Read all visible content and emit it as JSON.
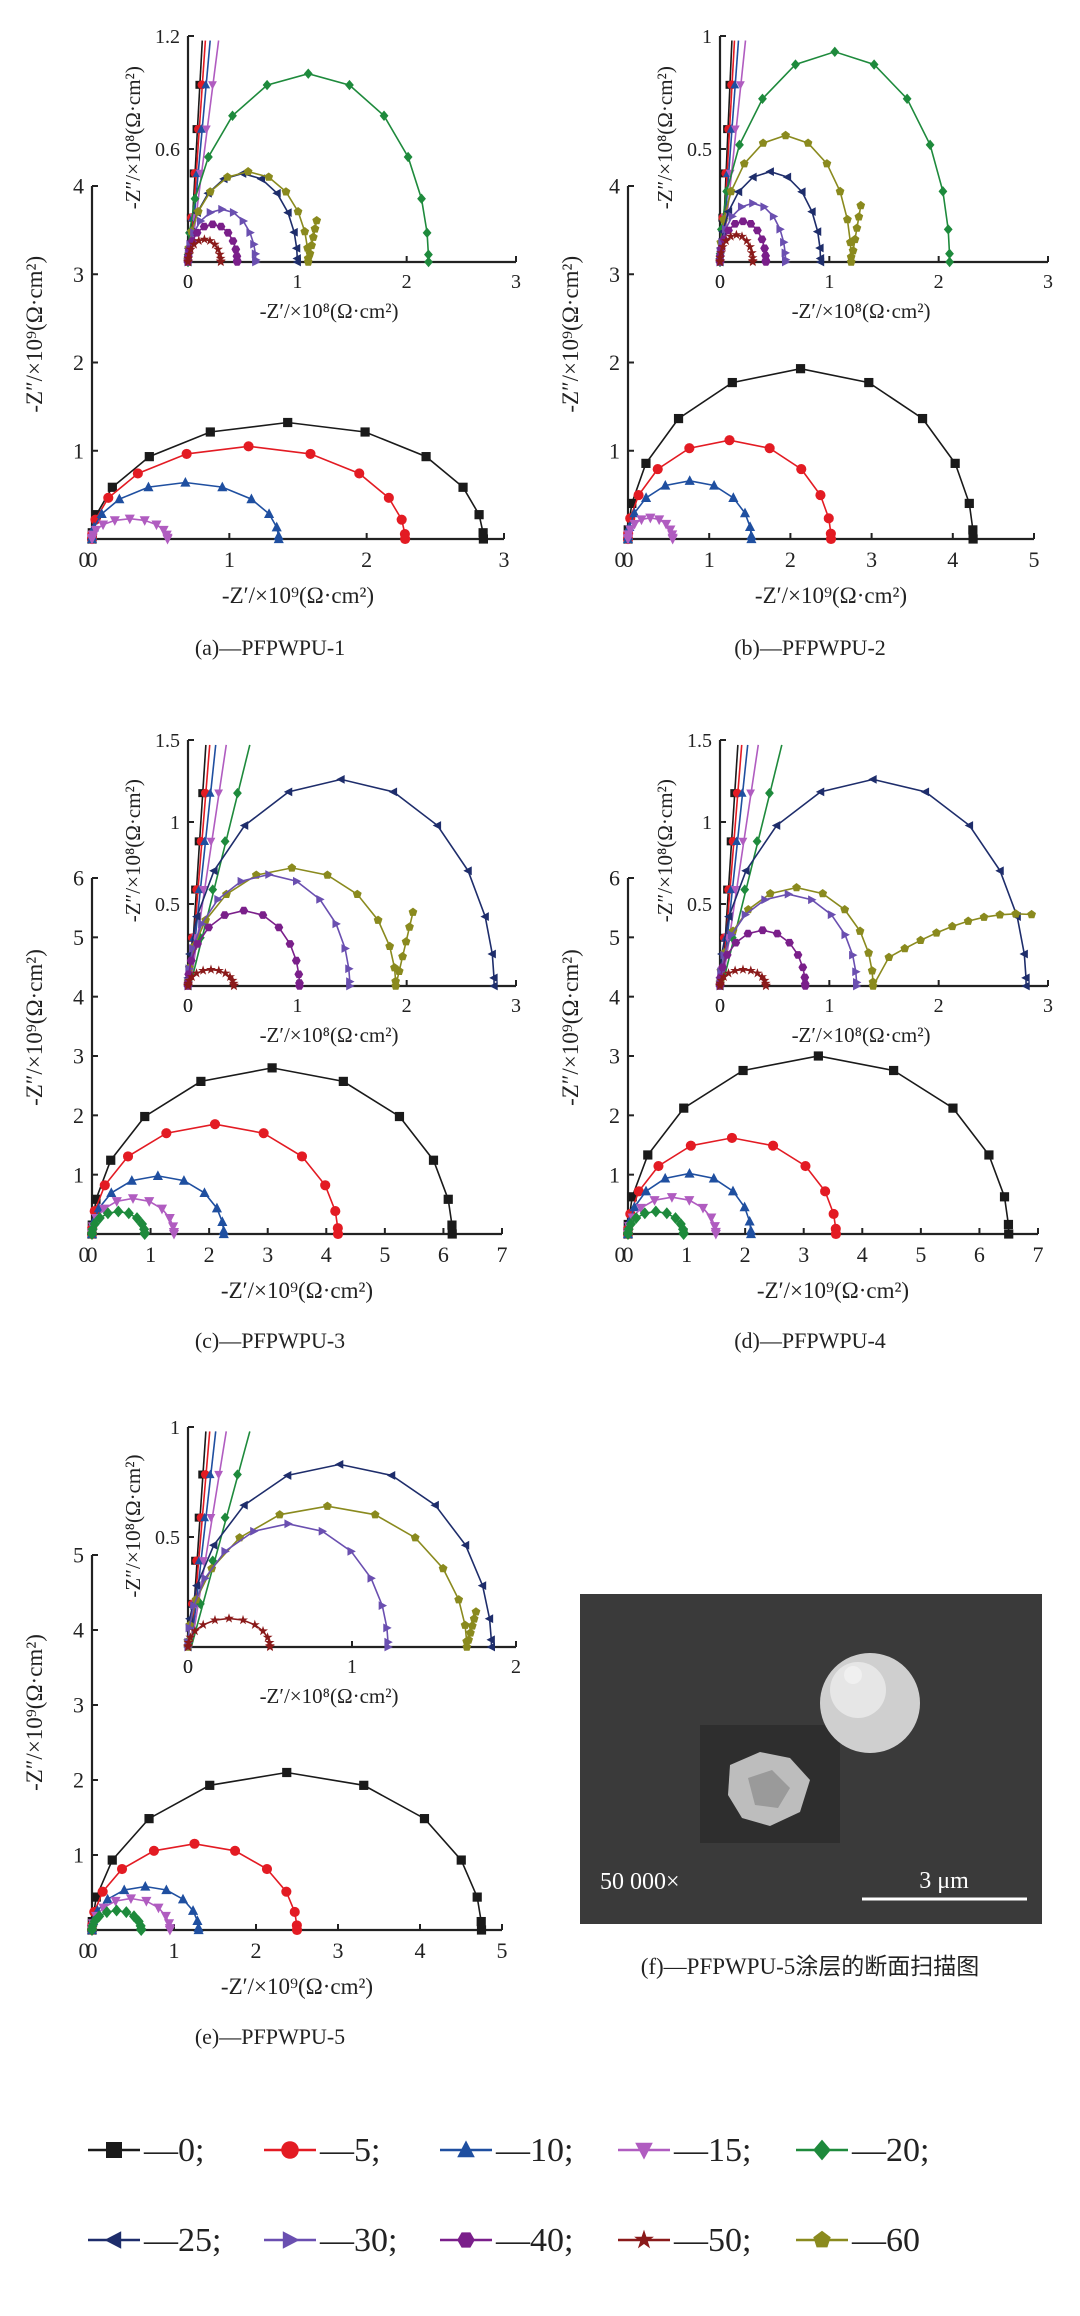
{
  "series_legend": [
    {
      "label": "—0;",
      "color": "#1a1a1a",
      "marker": "square"
    },
    {
      "label": "—5;",
      "color": "#e31b23",
      "marker": "circle"
    },
    {
      "label": "—10;",
      "color": "#1f4fa0",
      "marker": "triangle-up"
    },
    {
      "label": "—15;",
      "color": "#b05cc0",
      "marker": "triangle-down"
    },
    {
      "label": "—20;",
      "color": "#1e8a3c",
      "marker": "diamond"
    },
    {
      "label": "—25;",
      "color": "#1e2d6b",
      "marker": "triangle-left"
    },
    {
      "label": "—30;",
      "color": "#6a4fb0",
      "marker": "triangle-right"
    },
    {
      "label": "—40;",
      "color": "#7a1f8a",
      "marker": "hexagon"
    },
    {
      "label": "—50;",
      "color": "#8a1a1a",
      "marker": "star"
    },
    {
      "label": "—60",
      "color": "#8a8a1e",
      "marker": "pentagon"
    }
  ],
  "sem": {
    "magnification": "50 000×",
    "scale_bar": "3 μm",
    "caption": "(f)—PFPWPU-5涂层的断面扫描图"
  },
  "chart_data": [
    {
      "type": "scatter",
      "caption": "(a)—PFPWPU-1",
      "xlabel": "-Z′/×10⁹(Ω·cm²)",
      "ylabel": "-Z″/×10⁹(Ω·cm²)",
      "xlim": [
        0,
        3
      ],
      "ylim": [
        0,
        4
      ],
      "xticks": [
        0,
        1,
        2,
        3
      ],
      "yticks": [
        1,
        2,
        3,
        4
      ],
      "series": [
        {
          "idx": 0,
          "diam": 2.85,
          "h": 1.32
        },
        {
          "idx": 1,
          "diam": 2.28,
          "h": 1.05
        },
        {
          "idx": 2,
          "diam": 1.36,
          "h": 0.64
        },
        {
          "idx": 3,
          "diam": 0.55,
          "h": 0.23
        }
      ],
      "inset": {
        "xlabel": "-Z′/×10⁸(Ω·cm²)",
        "ylabel": "-Z″/×10⁸(Ω·cm²)",
        "xlim": [
          0,
          3
        ],
        "ylim": [
          0,
          1.2
        ],
        "xticks": [
          0,
          1,
          2,
          3
        ],
        "yticks": [
          0.6,
          1.2
        ],
        "arcs": [
          {
            "idx": 4,
            "diam": 2.2,
            "h": 1.0
          },
          {
            "idx": 5,
            "diam": 1.0,
            "h": 0.47
          },
          {
            "idx": 9,
            "diam": 1.1,
            "h": 0.48,
            "tail": 0.22
          },
          {
            "idx": 6,
            "diam": 0.62,
            "h": 0.28
          },
          {
            "idx": 7,
            "diam": 0.45,
            "h": 0.2
          },
          {
            "idx": 8,
            "diam": 0.3,
            "h": 0.12
          }
        ],
        "lines": [
          0,
          1,
          2,
          3
        ]
      }
    },
    {
      "type": "scatter",
      "caption": "(b)—PFPWPU-2",
      "xlabel": "-Z′/×10⁹(Ω·cm²)",
      "ylabel": "-Z″/×10⁹(Ω·cm²)",
      "xlim": [
        0,
        5
      ],
      "ylim": [
        0,
        4
      ],
      "xticks": [
        0,
        1,
        2,
        3,
        4,
        5
      ],
      "yticks": [
        1,
        2,
        3,
        4
      ],
      "series": [
        {
          "idx": 0,
          "diam": 4.25,
          "h": 1.93
        },
        {
          "idx": 1,
          "diam": 2.5,
          "h": 1.12
        },
        {
          "idx": 2,
          "diam": 1.52,
          "h": 0.66
        },
        {
          "idx": 3,
          "diam": 0.55,
          "h": 0.24
        }
      ],
      "inset": {
        "xlabel": "-Z′/×10⁸(Ω·cm²)",
        "ylabel": "-Z″/×10⁸(Ω·cm²)",
        "xlim": [
          0,
          3
        ],
        "ylim": [
          0,
          1.0
        ],
        "xticks": [
          0,
          1,
          2,
          3
        ],
        "yticks": [
          0.5,
          1.0
        ],
        "arcs": [
          {
            "idx": 4,
            "diam": 2.1,
            "h": 0.93
          },
          {
            "idx": 9,
            "diam": 1.2,
            "h": 0.56,
            "tail": 0.25
          },
          {
            "idx": 5,
            "diam": 0.92,
            "h": 0.4
          },
          {
            "idx": 6,
            "diam": 0.6,
            "h": 0.26
          },
          {
            "idx": 7,
            "diam": 0.42,
            "h": 0.18
          },
          {
            "idx": 8,
            "diam": 0.3,
            "h": 0.12
          }
        ],
        "lines": [
          0,
          1,
          2,
          3
        ]
      }
    },
    {
      "type": "scatter",
      "caption": "(c)—PFPWPU-3",
      "xlabel": "-Z′/×10⁹(Ω·cm²)",
      "ylabel": "-Z″/×10⁹(Ω·cm²)",
      "xlim": [
        0,
        7
      ],
      "ylim": [
        0,
        6
      ],
      "xticks": [
        0,
        1,
        2,
        3,
        4,
        5,
        6,
        7
      ],
      "yticks": [
        1,
        2,
        3,
        4,
        5,
        6
      ],
      "series": [
        {
          "idx": 0,
          "diam": 6.15,
          "h": 2.8
        },
        {
          "idx": 1,
          "diam": 4.2,
          "h": 1.85
        },
        {
          "idx": 2,
          "diam": 2.25,
          "h": 0.98
        },
        {
          "idx": 3,
          "diam": 1.4,
          "h": 0.6
        },
        {
          "idx": 4,
          "diam": 0.9,
          "h": 0.38
        }
      ],
      "inset": {
        "xlabel": "-Z′/×10⁸(Ω·cm²)",
        "ylabel": "-Z″/×10⁸(Ω·cm²)",
        "xlim": [
          0,
          3
        ],
        "ylim": [
          0,
          1.5
        ],
        "xticks": [
          0,
          1,
          2,
          3
        ],
        "yticks": [
          0.5,
          1.0,
          1.5
        ],
        "arcs": [
          {
            "idx": 5,
            "diam": 2.8,
            "h": 1.26
          },
          {
            "idx": 9,
            "diam": 1.9,
            "h": 0.72,
            "tail": 0.45
          },
          {
            "idx": 6,
            "diam": 1.48,
            "h": 0.68
          },
          {
            "idx": 7,
            "diam": 1.02,
            "h": 0.46
          },
          {
            "idx": 8,
            "diam": 0.42,
            "h": 0.1
          }
        ],
        "lines": [
          0,
          1,
          2,
          3,
          4
        ]
      }
    },
    {
      "type": "scatter",
      "caption": "(d)—PFPWPU-4",
      "xlabel": "-Z′/×10⁹(Ω·cm²)",
      "ylabel": "-Z″/×10⁹(Ω·cm²)",
      "xlim": [
        0,
        7
      ],
      "ylim": [
        0,
        6
      ],
      "xticks": [
        0,
        1,
        2,
        3,
        4,
        5,
        6,
        7
      ],
      "yticks": [
        1,
        2,
        3,
        4,
        5,
        6
      ],
      "series": [
        {
          "idx": 0,
          "diam": 6.5,
          "h": 3.0
        },
        {
          "idx": 1,
          "diam": 3.55,
          "h": 1.62
        },
        {
          "idx": 2,
          "diam": 2.1,
          "h": 1.02
        },
        {
          "idx": 3,
          "diam": 1.5,
          "h": 0.62
        },
        {
          "idx": 4,
          "diam": 0.95,
          "h": 0.38
        }
      ],
      "inset": {
        "xlabel": "-Z′/×10⁸(Ω·cm²)",
        "ylabel": "-Z″/×10⁸(Ω·cm²)",
        "xlim": [
          0,
          3
        ],
        "ylim": [
          0,
          1.5
        ],
        "xticks": [
          0,
          1,
          2,
          3
        ],
        "yticks": [
          0.5,
          1.0,
          1.5
        ],
        "arcs": [
          {
            "idx": 5,
            "diam": 2.8,
            "h": 1.26
          },
          {
            "idx": 9,
            "diam": 1.4,
            "h": 0.6,
            "tail2": true
          },
          {
            "idx": 6,
            "diam": 1.25,
            "h": 0.56
          },
          {
            "idx": 7,
            "diam": 0.78,
            "h": 0.34
          },
          {
            "idx": 8,
            "diam": 0.42,
            "h": 0.1
          }
        ],
        "lines": [
          0,
          1,
          2,
          3,
          4
        ]
      }
    },
    {
      "type": "scatter",
      "caption": "(e)—PFPWPU-5",
      "xlabel": "-Z′/×10⁹(Ω·cm²)",
      "ylabel": "-Z″/×10⁹(Ω·cm²)",
      "xlim": [
        0,
        5
      ],
      "ylim": [
        0,
        5
      ],
      "xticks": [
        0,
        1,
        2,
        3,
        4,
        5
      ],
      "yticks": [
        1,
        2,
        3,
        4,
        5
      ],
      "series": [
        {
          "idx": 0,
          "diam": 4.75,
          "h": 2.1
        },
        {
          "idx": 1,
          "diam": 2.5,
          "h": 1.15
        },
        {
          "idx": 2,
          "diam": 1.3,
          "h": 0.58
        },
        {
          "idx": 3,
          "diam": 0.95,
          "h": 0.42
        },
        {
          "idx": 4,
          "diam": 0.6,
          "h": 0.26
        }
      ],
      "inset": {
        "xlabel": "-Z′/×10⁸(Ω·cm²)",
        "ylabel": "-Z″/×10⁸(Ω·cm²)",
        "xlim": [
          0,
          2
        ],
        "ylim": [
          0,
          1.0
        ],
        "xticks": [
          0,
          1,
          2
        ],
        "yticks": [
          0.5,
          1.0
        ],
        "arcs": [
          {
            "idx": 5,
            "diam": 1.85,
            "h": 0.83
          },
          {
            "idx": 9,
            "diam": 1.7,
            "h": 0.64,
            "tail": 0.16
          },
          {
            "idx": 6,
            "diam": 1.22,
            "h": 0.56
          },
          {
            "idx": 8,
            "diam": 0.5,
            "h": 0.13
          }
        ],
        "lines": [
          0,
          1,
          2,
          3,
          4
        ]
      }
    }
  ]
}
